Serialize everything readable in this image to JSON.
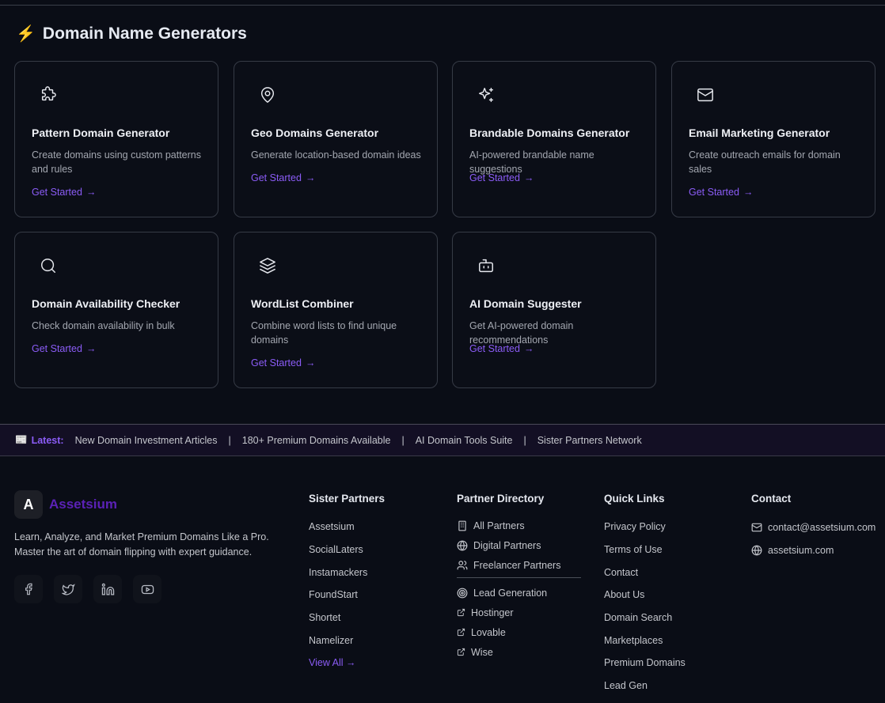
{
  "section": {
    "title": "Domain Name Generators",
    "icon": "lightning-icon"
  },
  "cards": [
    {
      "title": "Pattern Domain Generator",
      "desc": "Create domains using custom patterns and rules",
      "cta": "Get Started",
      "icon": "puzzle-icon"
    },
    {
      "title": "Geo Domains Generator",
      "desc": "Generate location-based domain ideas",
      "cta": "Get Started",
      "icon": "map-pin-icon"
    },
    {
      "title": "Brandable Domains Generator",
      "desc": "AI-powered brandable name suggestions",
      "cta": "Get Started",
      "icon": "sparkles-icon"
    },
    {
      "title": "Email Marketing Generator",
      "desc": "Create outreach emails for domain sales",
      "cta": "Get Started",
      "icon": "mail-icon"
    },
    {
      "title": "Domain Availability Checker",
      "desc": "Check domain availability in bulk",
      "cta": "Get Started",
      "icon": "search-icon"
    },
    {
      "title": "WordList Combiner",
      "desc": "Combine word lists to find unique domains",
      "cta": "Get Started",
      "icon": "layers-icon"
    },
    {
      "title": "AI Domain Suggester",
      "desc": "Get AI-powered domain recommendations",
      "cta": "Get Started",
      "icon": "bot-icon"
    }
  ],
  "ticker": {
    "label": "Latest:",
    "items": [
      "New Domain Investment Articles",
      "180+ Premium Domains Available",
      "AI Domain Tools Suite",
      "Sister Partners Network"
    ],
    "separator": "|"
  },
  "footer": {
    "brand": {
      "logo_letter": "A",
      "name": "Assetsium",
      "tagline_1": "Learn, Analyze, and Market Premium Domains Like a Pro.",
      "tagline_2": "Master the art of domain flipping with expert guidance."
    },
    "social": [
      "facebook-icon",
      "twitter-icon",
      "linkedin-icon",
      "youtube-icon"
    ],
    "sister": {
      "title": "Sister Partners",
      "items": [
        "Assetsium",
        "SocialLaters",
        "Instamackers",
        "FoundStart",
        "Shortet",
        "Namelizer"
      ],
      "view_all": "View All →"
    },
    "directory": {
      "title": "Partner Directory",
      "items": [
        "All Partners",
        "Digital Partners",
        "Freelancer Partners"
      ],
      "items2": [
        "Lead Generation",
        "Hostinger",
        "Lovable",
        "Wise"
      ]
    },
    "quick": {
      "title": "Quick Links",
      "items": [
        "Privacy Policy",
        "Terms of Use",
        "Contact",
        "About Us",
        "Domain Search",
        "Marketplaces",
        "Premium Domains",
        "Lead Gen"
      ]
    },
    "contact": {
      "title": "Contact",
      "email": "contact@assetsium.com",
      "site": "assetsium.com"
    }
  },
  "colors": {
    "accent": "#8b5cf6",
    "brand": "#5b21b6",
    "background": "#0a0d16"
  }
}
